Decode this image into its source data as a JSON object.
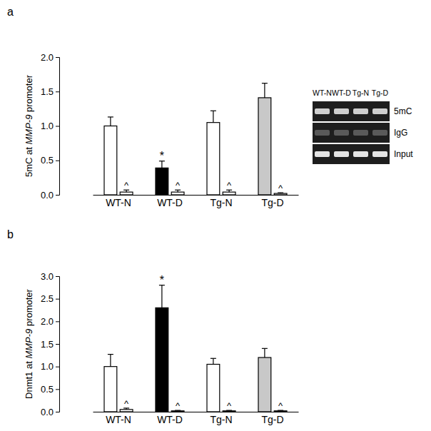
{
  "chart_data": [
    {
      "type": "bar",
      "panel_label": "a",
      "y_label": [
        "5mC at ",
        "MMP-9",
        " promoter"
      ],
      "categories": [
        "WT-N",
        "WT-D",
        "Tg-N",
        "Tg-D"
      ],
      "series": [
        {
          "colors": [
            "#ffffff",
            "#000000",
            "#ffffff",
            "#c8c8c8"
          ],
          "values": [
            1.0,
            0.39,
            1.05,
            1.41
          ],
          "errors": [
            0.13,
            0.1,
            0.17,
            0.21
          ],
          "annotations": [
            null,
            "*",
            null,
            null
          ]
        },
        {
          "color": "#ffffff",
          "values": [
            0.04,
            0.04,
            0.04,
            0.02
          ],
          "errors": [
            0.03,
            0.03,
            0.03,
            0.01
          ],
          "annotations": [
            "^",
            "^",
            "^",
            "^"
          ]
        }
      ],
      "ylim": [
        0,
        2
      ],
      "yticks": [
        {
          "value": 0,
          "label": "0.0"
        },
        0.5,
        {
          "value": 1,
          "label": "1.0"
        },
        1.5,
        {
          "value": 2,
          "label": "2.0"
        }
      ],
      "gel": {
        "lanes": [
          "WT-N",
          "WT-D",
          "Tg-N",
          "Tg-D"
        ],
        "rows": [
          "5mC",
          "IgG",
          "Input"
        ]
      }
    },
    {
      "type": "bar",
      "panel_label": "b",
      "y_label": [
        "Dnmt1 at ",
        "MMP-9",
        " promoter"
      ],
      "categories": [
        "WT-N",
        "WT-D",
        "Tg-N",
        "Tg-D"
      ],
      "series": [
        {
          "colors": [
            "#ffffff",
            "#000000",
            "#ffffff",
            "#c8c8c8"
          ],
          "values": [
            1.0,
            2.3,
            1.05,
            1.2
          ],
          "errors": [
            0.27,
            0.5,
            0.13,
            0.2
          ],
          "annotations": [
            null,
            "*",
            null,
            null
          ]
        },
        {
          "color": "#ffffff",
          "values": [
            0.05,
            0.02,
            0.02,
            0.02
          ],
          "errors": [
            0.03,
            0.01,
            0.01,
            0.01
          ],
          "annotations": [
            "^",
            "^",
            "^",
            "^"
          ]
        }
      ],
      "ylim": [
        0,
        3
      ],
      "yticks": [
        {
          "value": 0,
          "label": "0.0"
        },
        0.5,
        {
          "value": 1,
          "label": "1.0"
        },
        1.5,
        {
          "value": 2,
          "label": "2.0"
        },
        2.5,
        {
          "value": 3,
          "label": "3.0"
        }
      ]
    }
  ]
}
